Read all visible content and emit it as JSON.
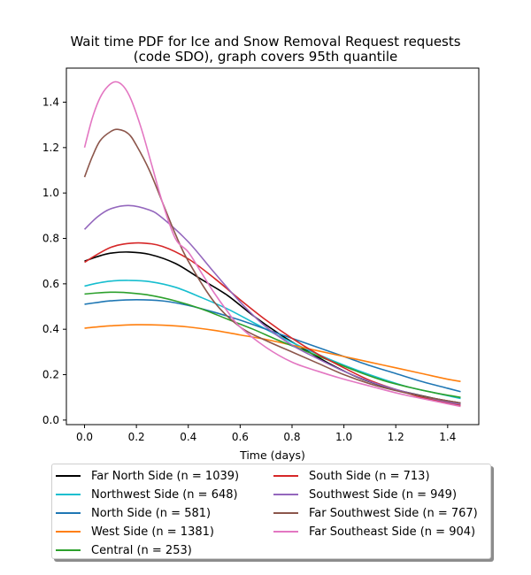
{
  "chart_data": {
    "type": "line",
    "title_line1": "Wait time PDF for Ice and Snow Removal Request  requests",
    "title_line2": "(code SDO), graph covers 95th quantile",
    "xlabel": "Time (days)",
    "ylabel": "",
    "xlim": [
      -0.07,
      1.52
    ],
    "ylim": [
      -0.02,
      1.55
    ],
    "xticks": [
      "0.0",
      "0.2",
      "0.4",
      "0.6",
      "0.8",
      "1.0",
      "1.2",
      "1.4"
    ],
    "yticks": [
      "0.0",
      "0.2",
      "0.4",
      "0.6",
      "0.8",
      "1.0",
      "1.2",
      "1.4"
    ],
    "grid": false,
    "legend_position": "below",
    "series": [
      {
        "name": "Far North Side (n = 1039)",
        "color": "#000000",
        "x": [
          0.0,
          0.05,
          0.1,
          0.17,
          0.25,
          0.35,
          0.45,
          0.55,
          0.65,
          0.75,
          0.85,
          0.95,
          1.05,
          1.15,
          1.25,
          1.35,
          1.45
        ],
        "y": [
          0.7,
          0.72,
          0.735,
          0.74,
          0.73,
          0.69,
          0.62,
          0.55,
          0.46,
          0.38,
          0.31,
          0.245,
          0.19,
          0.15,
          0.12,
          0.095,
          0.075
        ]
      },
      {
        "name": "Northwest Side (n = 648)",
        "color": "#17becf",
        "x": [
          0.0,
          0.05,
          0.1,
          0.17,
          0.25,
          0.35,
          0.45,
          0.55,
          0.65,
          0.75,
          0.85,
          0.95,
          1.05,
          1.15,
          1.25,
          1.35,
          1.45
        ],
        "y": [
          0.59,
          0.603,
          0.612,
          0.615,
          0.61,
          0.585,
          0.54,
          0.49,
          0.43,
          0.37,
          0.315,
          0.265,
          0.22,
          0.18,
          0.145,
          0.12,
          0.095
        ]
      },
      {
        "name": "North Side (n = 581)",
        "color": "#1f77b4",
        "x": [
          0.0,
          0.05,
          0.1,
          0.2,
          0.3,
          0.4,
          0.5,
          0.6,
          0.7,
          0.8,
          0.9,
          1.0,
          1.1,
          1.2,
          1.3,
          1.4,
          1.45
        ],
        "y": [
          0.51,
          0.518,
          0.525,
          0.53,
          0.525,
          0.505,
          0.475,
          0.44,
          0.4,
          0.36,
          0.32,
          0.28,
          0.24,
          0.205,
          0.17,
          0.14,
          0.125
        ]
      },
      {
        "name": "West Side (n = 1381)",
        "color": "#ff7f0e",
        "x": [
          0.0,
          0.1,
          0.2,
          0.3,
          0.4,
          0.5,
          0.6,
          0.7,
          0.8,
          0.9,
          1.0,
          1.1,
          1.2,
          1.3,
          1.4,
          1.45
        ],
        "y": [
          0.405,
          0.415,
          0.42,
          0.418,
          0.41,
          0.395,
          0.375,
          0.355,
          0.33,
          0.305,
          0.28,
          0.255,
          0.23,
          0.205,
          0.18,
          0.17
        ]
      },
      {
        "name": "Central (n = 253)",
        "color": "#2ca02c",
        "x": [
          0.0,
          0.05,
          0.1,
          0.15,
          0.25,
          0.35,
          0.45,
          0.55,
          0.65,
          0.75,
          0.85,
          0.95,
          1.05,
          1.15,
          1.25,
          1.35,
          1.45
        ],
        "y": [
          0.555,
          0.56,
          0.563,
          0.562,
          0.55,
          0.525,
          0.49,
          0.445,
          0.4,
          0.35,
          0.305,
          0.26,
          0.215,
          0.175,
          0.145,
          0.12,
          0.1
        ]
      },
      {
        "name": "South Side (n = 713)",
        "color": "#d62728",
        "x": [
          0.0,
          0.05,
          0.1,
          0.15,
          0.22,
          0.3,
          0.4,
          0.5,
          0.6,
          0.7,
          0.8,
          0.9,
          1.0,
          1.1,
          1.2,
          1.3,
          1.4,
          1.45
        ],
        "y": [
          0.695,
          0.73,
          0.76,
          0.775,
          0.78,
          0.765,
          0.71,
          0.625,
          0.53,
          0.44,
          0.36,
          0.29,
          0.23,
          0.175,
          0.135,
          0.1,
          0.075,
          0.065
        ]
      },
      {
        "name": "Southwest Side (n = 949)",
        "color": "#9467bd",
        "x": [
          0.0,
          0.05,
          0.1,
          0.17,
          0.25,
          0.3,
          0.4,
          0.5,
          0.6,
          0.7,
          0.8,
          0.9,
          1.0,
          1.1,
          1.2,
          1.3,
          1.4,
          1.45
        ],
        "y": [
          0.84,
          0.895,
          0.93,
          0.945,
          0.925,
          0.89,
          0.785,
          0.65,
          0.52,
          0.41,
          0.33,
          0.27,
          0.215,
          0.17,
          0.135,
          0.105,
          0.08,
          0.07
        ]
      },
      {
        "name": "Far Southwest Side (n = 767)",
        "color": "#8c564b",
        "x": [
          0.0,
          0.03,
          0.06,
          0.1,
          0.13,
          0.17,
          0.2,
          0.25,
          0.3,
          0.35,
          0.4,
          0.5,
          0.6,
          0.7,
          0.8,
          0.9,
          1.0,
          1.1,
          1.2,
          1.3,
          1.45
        ],
        "y": [
          1.07,
          1.16,
          1.23,
          1.27,
          1.28,
          1.26,
          1.21,
          1.1,
          0.96,
          0.82,
          0.7,
          0.52,
          0.41,
          0.35,
          0.3,
          0.25,
          0.2,
          0.16,
          0.13,
          0.105,
          0.075
        ]
      },
      {
        "name": "Far Southeast Side (n = 904)",
        "color": "#e377c2",
        "x": [
          0.0,
          0.03,
          0.06,
          0.09,
          0.12,
          0.15,
          0.18,
          0.22,
          0.26,
          0.3,
          0.35,
          0.4,
          0.45,
          0.5,
          0.55,
          0.6,
          0.7,
          0.8,
          0.9,
          1.0,
          1.1,
          1.2,
          1.3,
          1.45
        ],
        "y": [
          1.2,
          1.33,
          1.42,
          1.47,
          1.49,
          1.47,
          1.41,
          1.28,
          1.12,
          0.96,
          0.8,
          0.74,
          0.65,
          0.56,
          0.48,
          0.41,
          0.32,
          0.255,
          0.215,
          0.18,
          0.15,
          0.12,
          0.095,
          0.06
        ]
      }
    ]
  }
}
